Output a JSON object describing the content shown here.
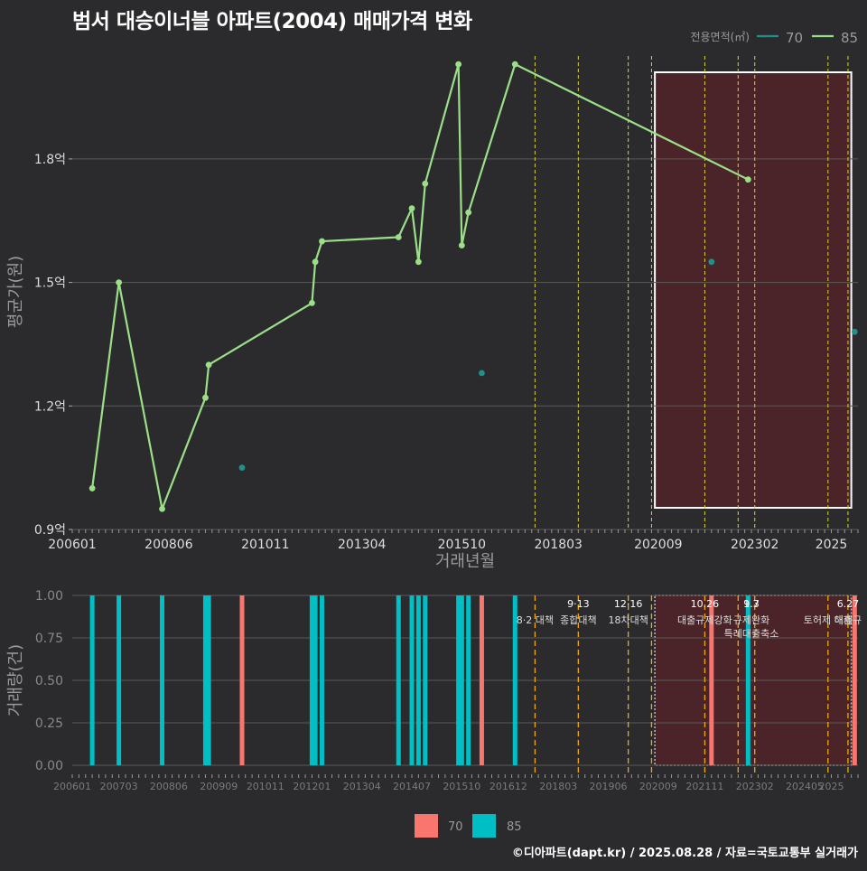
{
  "title": "범서 대승이너블 아파트(2004) 매매가격 변화",
  "footer": "©디아파트(dapt.kr) / 2025.08.28 / 자료=국토교통부 실거래가",
  "colors": {
    "background": "#2b2b2d",
    "grid": "#5a5a5a",
    "s70": "#20908a",
    "s85": "#9be089",
    "bar70": "#f8766d",
    "bar85": "#00bfc4",
    "highlight_fill": "#4a2428",
    "highlight_box": "#ffffff",
    "vline_top": "#d7d42a",
    "vline_bottom": "#f2a900"
  },
  "chart_data": [
    {
      "type": "line",
      "xlabel": "거래년월",
      "ylabel": "평균가(원)",
      "ylim": [
        0.9,
        2.05
      ],
      "y_ticks": [
        0.9,
        1.2,
        1.5,
        1.8
      ],
      "y_tick_labels": [
        "0.9억",
        "1.2억",
        "1.5억",
        "1.8억"
      ],
      "x_tick_labels": [
        "200601",
        "200806",
        "201011",
        "201304",
        "201510",
        "201803",
        "202009",
        "202302",
        "2025"
      ],
      "legend_title": "전용면적(㎡)",
      "legend_position": "top-right",
      "series": [
        {
          "name": "85",
          "line": true,
          "points": [
            [
              "2006-07",
              1.0
            ],
            [
              "2007-03",
              1.5
            ],
            [
              "2008-04",
              0.95
            ],
            [
              "2009-05",
              1.22
            ],
            [
              "2009-06",
              1.3
            ],
            [
              "2012-01",
              1.45
            ],
            [
              "2012-02",
              1.55
            ],
            [
              "2012-04",
              1.6
            ],
            [
              "2014-03",
              1.61
            ],
            [
              "2014-07",
              1.68
            ],
            [
              "2014-09",
              1.55
            ],
            [
              "2014-11",
              1.74
            ],
            [
              "2015-09",
              2.03
            ],
            [
              "2015-10",
              1.59
            ],
            [
              "2015-12",
              1.67
            ],
            [
              "2017-02",
              2.03
            ],
            [
              "2022-12",
              1.75
            ]
          ]
        },
        {
          "name": "70",
          "line": false,
          "points": [
            [
              "2010-04",
              1.05
            ],
            [
              "2016-04",
              1.28
            ],
            [
              "2022-01",
              1.55
            ],
            [
              "2025-08",
              1.38
            ]
          ]
        }
      ],
      "policy_lines": [
        "2017-08",
        "2018-09",
        "2019-12",
        "2020-07",
        "2021-11",
        "2022-09",
        "2023-02",
        "2024-12",
        "2025-06"
      ],
      "highlight_range": [
        "2020-08",
        "2025-07"
      ]
    },
    {
      "type": "bar",
      "ylabel": "거래량(건)",
      "ylim": [
        0,
        1.0
      ],
      "y_ticks": [
        0,
        0.25,
        0.5,
        0.75,
        1.0
      ],
      "y_tick_labels": [
        "0.00",
        "0.25",
        "0.50",
        "0.75",
        "1.00"
      ],
      "x_tick_labels": [
        "200601",
        "200703",
        "200806",
        "200909",
        "201011",
        "201201",
        "201304",
        "201407",
        "201510",
        "201612",
        "201803",
        "201906",
        "202009",
        "202111",
        "202302",
        "202405",
        "2025"
      ],
      "legend_position": "bottom",
      "bars": [
        {
          "series": "85",
          "month": "2006-07",
          "value": 1
        },
        {
          "series": "85",
          "month": "2007-03",
          "value": 1
        },
        {
          "series": "85",
          "month": "2008-04",
          "value": 1
        },
        {
          "series": "85",
          "month": "2009-05",
          "value": 1
        },
        {
          "series": "85",
          "month": "2009-06",
          "value": 1
        },
        {
          "series": "70",
          "month": "2010-04",
          "value": 1
        },
        {
          "series": "85",
          "month": "2012-01",
          "value": 1
        },
        {
          "series": "85",
          "month": "2012-02",
          "value": 1
        },
        {
          "series": "85",
          "month": "2012-04",
          "value": 1
        },
        {
          "series": "85",
          "month": "2014-03",
          "value": 1
        },
        {
          "series": "85",
          "month": "2014-07",
          "value": 1
        },
        {
          "series": "85",
          "month": "2014-09",
          "value": 1
        },
        {
          "series": "85",
          "month": "2014-11",
          "value": 1
        },
        {
          "series": "85",
          "month": "2015-09",
          "value": 1
        },
        {
          "series": "85",
          "month": "2015-10",
          "value": 1
        },
        {
          "series": "85",
          "month": "2015-12",
          "value": 1
        },
        {
          "series": "70",
          "month": "2016-04",
          "value": 1
        },
        {
          "series": "85",
          "month": "2017-02",
          "value": 1
        },
        {
          "series": "70",
          "month": "2022-01",
          "value": 1
        },
        {
          "series": "85",
          "month": "2022-12",
          "value": 1
        },
        {
          "series": "70",
          "month": "2025-08",
          "value": 1
        }
      ],
      "annotations": [
        {
          "month": "2017-08",
          "date": "",
          "label": "8·2 대책"
        },
        {
          "month": "2018-09",
          "date": "9·13",
          "label": "종합대책"
        },
        {
          "month": "2019-12",
          "date": "12·16",
          "label": "18차대책"
        },
        {
          "month": "2021-11",
          "date": "10.26",
          "label": "대출규제강화"
        },
        {
          "month": "2023-01",
          "date": "1.3",
          "label": "규제완화"
        },
        {
          "month": "2023-01",
          "date": "9.7",
          "label": "특례대출축소"
        },
        {
          "month": "2025-06",
          "date": "6.27",
          "label": "대출규"
        },
        {
          "month": "2024-12",
          "date": "",
          "label": "토허제 해제"
        }
      ]
    }
  ]
}
